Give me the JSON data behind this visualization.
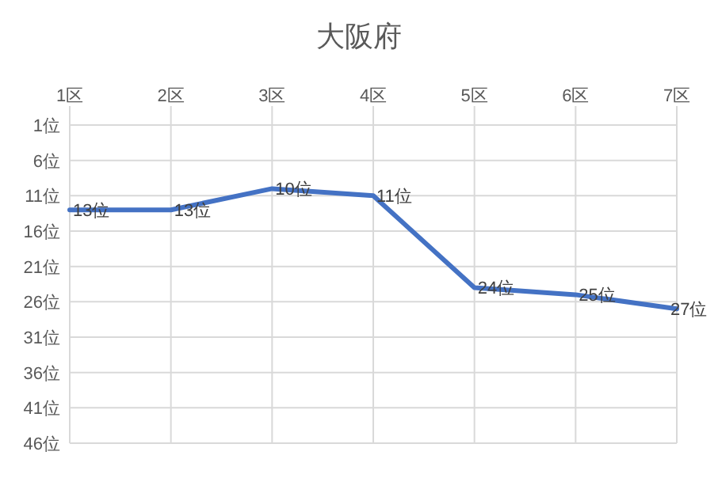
{
  "chart_data": {
    "type": "line",
    "title": "大阪府",
    "categories": [
      "1区",
      "2区",
      "3区",
      "4区",
      "5区",
      "6区",
      "7区"
    ],
    "series": [
      {
        "color": "#4472c4",
        "values": [
          13,
          13,
          10,
          11,
          24,
          25,
          27
        ],
        "value_labels": [
          "13位",
          "13位",
          "10位",
          "11位",
          "24位",
          "25位",
          "27位"
        ]
      }
    ],
    "ylim": [
      46,
      1
    ],
    "yticks": [
      {
        "value": 1,
        "label": "1位"
      },
      {
        "value": 6,
        "label": "6位"
      },
      {
        "value": 11,
        "label": "11位"
      },
      {
        "value": 16,
        "label": "16位"
      },
      {
        "value": 21,
        "label": "21位"
      },
      {
        "value": 26,
        "label": "26位"
      },
      {
        "value": 31,
        "label": "31位"
      },
      {
        "value": 36,
        "label": "36位"
      },
      {
        "value": 41,
        "label": "41位"
      },
      {
        "value": 46,
        "label": "46位"
      }
    ],
    "grid": true
  }
}
